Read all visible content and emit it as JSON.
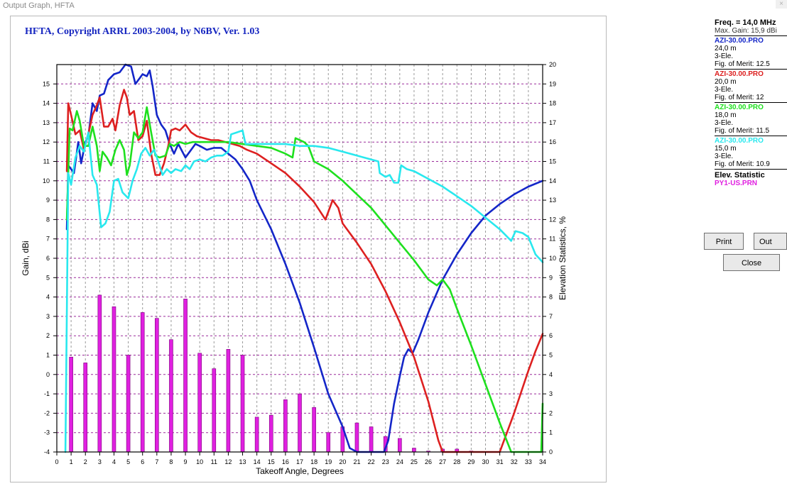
{
  "window": {
    "title": "Output Graph, HFTA",
    "close_glyph": "×"
  },
  "chart_data": {
    "type": "line",
    "title": "HFTA, Copyright ARRL 2003-2004, by N6BV, Ver. 1.03",
    "xlabel": "Takeoff Angle, Degrees",
    "ylabel": "Gain, dBi",
    "y2label": "Elevation Statistics, %",
    "xlim": [
      0,
      34
    ],
    "ylim": [
      -4,
      16
    ],
    "y2lim": [
      0,
      20
    ],
    "x_ticks": [
      0,
      1,
      2,
      3,
      4,
      5,
      6,
      7,
      8,
      9,
      10,
      11,
      12,
      13,
      14,
      15,
      16,
      17,
      18,
      19,
      20,
      21,
      22,
      23,
      24,
      25,
      26,
      27,
      28,
      29,
      30,
      31,
      32,
      33,
      34
    ],
    "y_ticks": [
      -4,
      -3,
      -2,
      -1,
      0,
      1,
      2,
      3,
      4,
      5,
      6,
      7,
      8,
      9,
      10,
      11,
      12,
      13,
      14,
      15
    ],
    "y2_ticks": [
      0,
      1,
      2,
      3,
      4,
      5,
      6,
      7,
      8,
      9,
      10,
      11,
      12,
      13,
      14,
      15,
      16,
      17,
      18,
      19,
      20
    ],
    "grid": true,
    "series": [
      {
        "name": "AZI-30.00.PRO",
        "color": "#1426c8",
        "points": [
          [
            0.7,
            7.5
          ],
          [
            0.8,
            10.8
          ],
          [
            1.0,
            10.6
          ],
          [
            1.2,
            10.4
          ],
          [
            1.5,
            12.0
          ],
          [
            1.7,
            10.9
          ],
          [
            2.0,
            12.0
          ],
          [
            2.2,
            12.3
          ],
          [
            2.5,
            14.0
          ],
          [
            2.8,
            13.6
          ],
          [
            3.0,
            14.4
          ],
          [
            3.3,
            14.5
          ],
          [
            3.6,
            15.2
          ],
          [
            4.0,
            15.5
          ],
          [
            4.4,
            15.6
          ],
          [
            4.8,
            16.0
          ],
          [
            5.2,
            15.9
          ],
          [
            5.5,
            15.0
          ],
          [
            5.8,
            15.3
          ],
          [
            6.0,
            15.5
          ],
          [
            6.3,
            15.4
          ],
          [
            6.5,
            15.7
          ],
          [
            6.7,
            14.9
          ],
          [
            7.0,
            13.4
          ],
          [
            7.3,
            12.9
          ],
          [
            7.6,
            12.6
          ],
          [
            7.9,
            11.9
          ],
          [
            8.2,
            11.4
          ],
          [
            8.5,
            11.9
          ],
          [
            9.0,
            11.2
          ],
          [
            9.3,
            11.5
          ],
          [
            9.7,
            11.9
          ],
          [
            10.0,
            11.8
          ],
          [
            10.5,
            11.6
          ],
          [
            11.0,
            11.7
          ],
          [
            11.5,
            11.7
          ],
          [
            12.0,
            11.4
          ],
          [
            12.5,
            11.1
          ],
          [
            13.0,
            10.6
          ],
          [
            13.5,
            10.0
          ],
          [
            14.0,
            9.0
          ],
          [
            15.0,
            7.5
          ],
          [
            16.0,
            5.7
          ],
          [
            17.0,
            3.7
          ],
          [
            18.0,
            1.4
          ],
          [
            19.0,
            -1.0
          ],
          [
            20.0,
            -2.7
          ],
          [
            20.5,
            -3.8
          ],
          [
            21.0,
            -4.0
          ],
          [
            22.9,
            -4.0
          ],
          [
            23.2,
            -3.4
          ],
          [
            23.6,
            -1.5
          ],
          [
            24.0,
            -0.1
          ],
          [
            24.3,
            0.9
          ],
          [
            24.6,
            1.3
          ],
          [
            24.9,
            1.1
          ],
          [
            25.3,
            1.8
          ],
          [
            26.0,
            3.2
          ],
          [
            27.0,
            4.9
          ],
          [
            28.0,
            6.2
          ],
          [
            29.0,
            7.3
          ],
          [
            30.0,
            8.2
          ],
          [
            31.0,
            8.8
          ],
          [
            32.0,
            9.3
          ],
          [
            33.0,
            9.7
          ],
          [
            34.0,
            10.0
          ]
        ]
      },
      {
        "name": "AZI-30.00.PRO",
        "color": "#dd2020",
        "points": [
          [
            0.7,
            10.5
          ],
          [
            0.8,
            14.0
          ],
          [
            1.0,
            13.4
          ],
          [
            1.3,
            12.4
          ],
          [
            1.6,
            12.6
          ],
          [
            1.9,
            11.6
          ],
          [
            2.2,
            12.4
          ],
          [
            2.5,
            13.4
          ],
          [
            2.8,
            13.9
          ],
          [
            3.0,
            14.3
          ],
          [
            3.3,
            12.8
          ],
          [
            3.6,
            12.8
          ],
          [
            3.9,
            13.2
          ],
          [
            4.1,
            12.6
          ],
          [
            4.4,
            13.9
          ],
          [
            4.7,
            14.7
          ],
          [
            4.9,
            14.3
          ],
          [
            5.1,
            13.4
          ],
          [
            5.4,
            13.6
          ],
          [
            5.7,
            12.1
          ],
          [
            6.0,
            12.3
          ],
          [
            6.3,
            13.1
          ],
          [
            6.6,
            11.4
          ],
          [
            6.9,
            10.3
          ],
          [
            7.2,
            10.3
          ],
          [
            7.5,
            10.9
          ],
          [
            7.8,
            11.8
          ],
          [
            8.0,
            12.6
          ],
          [
            8.3,
            12.7
          ],
          [
            8.6,
            12.6
          ],
          [
            9.0,
            12.9
          ],
          [
            9.4,
            12.5
          ],
          [
            9.8,
            12.3
          ],
          [
            10.3,
            12.2
          ],
          [
            10.8,
            12.1
          ],
          [
            11.3,
            12.1
          ],
          [
            11.8,
            12.0
          ],
          [
            12.3,
            11.9
          ],
          [
            12.8,
            11.8
          ],
          [
            13.3,
            11.6
          ],
          [
            14.0,
            11.4
          ],
          [
            15.0,
            10.9
          ],
          [
            16.0,
            10.4
          ],
          [
            17.0,
            9.7
          ],
          [
            18.0,
            8.9
          ],
          [
            18.8,
            8.0
          ],
          [
            19.3,
            9.0
          ],
          [
            19.7,
            8.6
          ],
          [
            20.0,
            7.8
          ],
          [
            21.0,
            6.8
          ],
          [
            22.0,
            5.7
          ],
          [
            23.0,
            4.3
          ],
          [
            24.0,
            2.7
          ],
          [
            25.0,
            0.9
          ],
          [
            26.0,
            -1.4
          ],
          [
            26.7,
            -3.4
          ],
          [
            27.0,
            -4.0
          ],
          [
            31.0,
            -4.0
          ],
          [
            31.5,
            -3.0
          ],
          [
            32.0,
            -2.0
          ],
          [
            32.5,
            -0.9
          ],
          [
            33.0,
            0.2
          ],
          [
            33.5,
            1.2
          ],
          [
            34.0,
            2.1
          ]
        ]
      },
      {
        "name": "AZI-30.00.PRO",
        "color": "#1ee01e",
        "points": [
          [
            0.7,
            8.0
          ],
          [
            0.9,
            12.7
          ],
          [
            1.1,
            12.6
          ],
          [
            1.4,
            13.6
          ],
          [
            1.6,
            13.1
          ],
          [
            1.9,
            11.8
          ],
          [
            2.2,
            11.8
          ],
          [
            2.5,
            12.8
          ],
          [
            2.8,
            11.8
          ],
          [
            3.0,
            10.5
          ],
          [
            3.2,
            11.5
          ],
          [
            3.5,
            11.2
          ],
          [
            3.8,
            10.8
          ],
          [
            4.1,
            11.6
          ],
          [
            4.4,
            12.1
          ],
          [
            4.7,
            11.6
          ],
          [
            4.9,
            10.3
          ],
          [
            5.1,
            10.8
          ],
          [
            5.4,
            12.5
          ],
          [
            5.7,
            12.2
          ],
          [
            6.0,
            12.5
          ],
          [
            6.3,
            13.8
          ],
          [
            6.6,
            12.5
          ],
          [
            6.9,
            11.3
          ],
          [
            7.2,
            11.2
          ],
          [
            7.6,
            11.3
          ],
          [
            7.9,
            11.9
          ],
          [
            8.2,
            11.8
          ],
          [
            8.6,
            12.0
          ],
          [
            9.0,
            11.9
          ],
          [
            9.5,
            12.0
          ],
          [
            10.0,
            12.0
          ],
          [
            10.5,
            12.0
          ],
          [
            11.0,
            12.0
          ],
          [
            11.5,
            12.0
          ],
          [
            12.0,
            12.0
          ],
          [
            13.0,
            11.9
          ],
          [
            14.0,
            11.8
          ],
          [
            15.0,
            11.7
          ],
          [
            16.0,
            11.4
          ],
          [
            16.5,
            11.2
          ],
          [
            16.7,
            12.2
          ],
          [
            17.3,
            12.0
          ],
          [
            17.6,
            11.8
          ],
          [
            18.0,
            11.0
          ],
          [
            19.0,
            10.6
          ],
          [
            20.0,
            10.0
          ],
          [
            21.0,
            9.3
          ],
          [
            22.0,
            8.6
          ],
          [
            23.0,
            7.7
          ],
          [
            24.0,
            6.8
          ],
          [
            25.0,
            5.9
          ],
          [
            26.0,
            4.9
          ],
          [
            26.6,
            4.6
          ],
          [
            27.0,
            4.9
          ],
          [
            27.5,
            4.4
          ],
          [
            28.0,
            3.4
          ],
          [
            29.0,
            1.5
          ],
          [
            30.0,
            -0.5
          ],
          [
            31.0,
            -2.5
          ],
          [
            31.8,
            -4.0
          ],
          [
            33.9,
            -4.0
          ],
          [
            34.0,
            -1.5
          ]
        ]
      },
      {
        "name": "AZI-30.00.PRO",
        "color": "#29e8ee",
        "points": [
          [
            0.6,
            -4.0
          ],
          [
            0.8,
            10.4
          ],
          [
            1.0,
            9.8
          ],
          [
            1.3,
            11.2
          ],
          [
            1.6,
            11.8
          ],
          [
            1.9,
            11.5
          ],
          [
            2.2,
            12.5
          ],
          [
            2.5,
            10.3
          ],
          [
            2.8,
            9.8
          ],
          [
            3.1,
            7.6
          ],
          [
            3.4,
            7.8
          ],
          [
            3.7,
            8.4
          ],
          [
            4.0,
            10.0
          ],
          [
            4.3,
            10.1
          ],
          [
            4.6,
            9.4
          ],
          [
            5.0,
            9.1
          ],
          [
            5.3,
            10.0
          ],
          [
            5.6,
            10.6
          ],
          [
            5.9,
            11.4
          ],
          [
            6.2,
            11.7
          ],
          [
            6.5,
            11.3
          ],
          [
            6.8,
            11.6
          ],
          [
            7.1,
            11.0
          ],
          [
            7.4,
            10.3
          ],
          [
            7.7,
            10.6
          ],
          [
            8.0,
            10.4
          ],
          [
            8.3,
            10.6
          ],
          [
            8.7,
            10.5
          ],
          [
            9.0,
            10.8
          ],
          [
            9.3,
            10.6
          ],
          [
            9.6,
            11.0
          ],
          [
            10.0,
            11.1
          ],
          [
            10.4,
            11.0
          ],
          [
            10.8,
            11.2
          ],
          [
            11.2,
            11.3
          ],
          [
            11.6,
            11.3
          ],
          [
            12.0,
            11.5
          ],
          [
            12.2,
            12.4
          ],
          [
            12.6,
            12.5
          ],
          [
            13.0,
            12.6
          ],
          [
            13.2,
            11.9
          ],
          [
            13.6,
            11.9
          ],
          [
            14.0,
            11.9
          ],
          [
            15.0,
            11.9
          ],
          [
            16.0,
            11.9
          ],
          [
            17.0,
            11.8
          ],
          [
            18.0,
            11.8
          ],
          [
            19.0,
            11.7
          ],
          [
            20.0,
            11.5
          ],
          [
            21.0,
            11.3
          ],
          [
            22.0,
            11.1
          ],
          [
            22.5,
            11.0
          ],
          [
            22.6,
            10.4
          ],
          [
            23.0,
            10.2
          ],
          [
            23.3,
            10.3
          ],
          [
            23.6,
            9.9
          ],
          [
            23.9,
            9.9
          ],
          [
            24.1,
            10.8
          ],
          [
            24.5,
            10.6
          ],
          [
            25.0,
            10.5
          ],
          [
            26.0,
            10.1
          ],
          [
            27.0,
            9.7
          ],
          [
            28.0,
            9.2
          ],
          [
            29.0,
            8.7
          ],
          [
            30.0,
            8.1
          ],
          [
            31.0,
            7.5
          ],
          [
            31.8,
            6.9
          ],
          [
            32.1,
            7.4
          ],
          [
            32.6,
            7.3
          ],
          [
            33.0,
            7.1
          ],
          [
            33.5,
            6.2
          ],
          [
            34.0,
            5.8
          ]
        ]
      }
    ],
    "elevation_statistics": {
      "name": "PY1-US.PRN",
      "color": "#e020e0",
      "bars": [
        [
          1,
          4.9
        ],
        [
          2,
          4.6
        ],
        [
          3,
          8.1
        ],
        [
          4,
          7.5
        ],
        [
          5,
          5.0
        ],
        [
          6,
          7.2
        ],
        [
          7,
          6.9
        ],
        [
          8,
          5.8
        ],
        [
          9,
          7.9
        ],
        [
          10,
          5.1
        ],
        [
          11,
          4.3
        ],
        [
          12,
          5.3
        ],
        [
          13,
          5.0
        ],
        [
          14,
          1.8
        ],
        [
          15,
          1.9
        ],
        [
          16,
          2.7
        ],
        [
          17,
          3.0
        ],
        [
          18,
          2.3
        ],
        [
          19,
          1.0
        ],
        [
          20,
          1.3
        ],
        [
          21,
          1.5
        ],
        [
          22,
          1.3
        ],
        [
          23,
          0.8
        ],
        [
          24,
          0.7
        ],
        [
          25,
          0.2
        ],
        [
          26,
          0.05
        ],
        [
          27,
          0.15
        ],
        [
          28,
          0.15
        ],
        [
          29,
          0.05
        ]
      ]
    }
  },
  "legend": {
    "freq_label": "Freq. = 14,0 MHz",
    "max_gain_label": "Max. Gain: 15,9 dBi",
    "entries": [
      {
        "name": "AZI-30.00.PRO",
        "color": "#1426c8",
        "height": "24,0 m",
        "type": "3-Ele.",
        "merit": "Fig. of Merit:  12.5"
      },
      {
        "name": "AZI-30.00.PRO",
        "color": "#dd2020",
        "height": "20,0 m",
        "type": "3-Ele.",
        "merit": "Fig. of Merit:  12"
      },
      {
        "name": "AZI-30.00.PRO",
        "color": "#1ee01e",
        "height": "18,0 m",
        "type": "3-Ele.",
        "merit": "Fig. of Merit:  11.5"
      },
      {
        "name": "AZI-30.00.PRO",
        "color": "#29e8ee",
        "height": "15,0 m",
        "type": "3-Ele.",
        "merit": "Fig. of Merit:  10.9"
      }
    ],
    "elev_title": "Elev. Statistic",
    "elev_file": "PY1-US.PRN"
  },
  "buttons": {
    "print": "Print",
    "out_file": "Out File",
    "close": "Close"
  }
}
